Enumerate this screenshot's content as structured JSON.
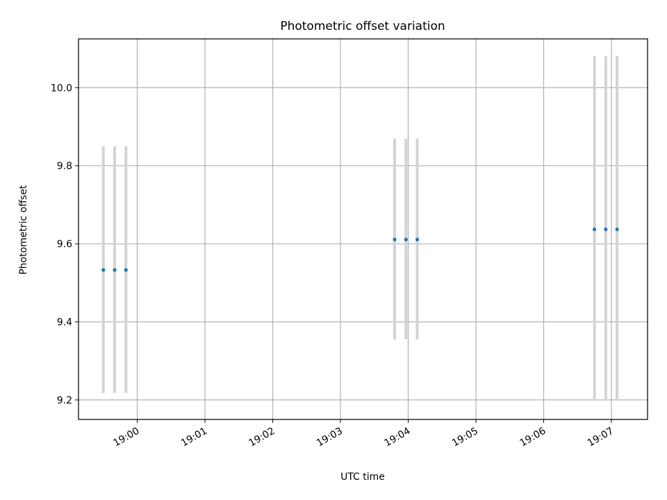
{
  "chart_data": {
    "type": "scatter",
    "title": "Photometric offset variation",
    "xlabel": "UTC time",
    "ylabel": "Photometric offset",
    "x_range": [
      "18:59:08",
      "19:07:32"
    ],
    "ylim": [
      9.15,
      10.125
    ],
    "x_ticks": [
      "19:00",
      "19:01",
      "19:02",
      "19:03",
      "19:04",
      "19:05",
      "19:06",
      "19:07"
    ],
    "y_ticks": [
      "9.2",
      "9.4",
      "9.6",
      "9.8",
      "10.0"
    ],
    "grid": true,
    "points": [
      {
        "x": "18:59:30",
        "y": 9.533,
        "ylow": 9.218,
        "yhigh": 9.85
      },
      {
        "x": "18:59:40",
        "y": 9.533,
        "ylow": 9.218,
        "yhigh": 9.85
      },
      {
        "x": "18:59:50",
        "y": 9.533,
        "ylow": 9.218,
        "yhigh": 9.85
      },
      {
        "x": "19:03:48",
        "y": 9.611,
        "ylow": 9.355,
        "yhigh": 9.869
      },
      {
        "x": "19:03:58",
        "y": 9.611,
        "ylow": 9.355,
        "yhigh": 9.869
      },
      {
        "x": "19:04:08",
        "y": 9.611,
        "ylow": 9.355,
        "yhigh": 9.869
      },
      {
        "x": "19:06:45",
        "y": 9.637,
        "ylow": 9.198,
        "yhigh": 10.081
      },
      {
        "x": "19:06:55",
        "y": 9.637,
        "ylow": 9.198,
        "yhigh": 10.081
      },
      {
        "x": "19:07:05",
        "y": 9.637,
        "ylow": 9.198,
        "yhigh": 10.081
      }
    ],
    "colors": {
      "marker": "#1f77b4",
      "errorbar": "#d3d3d3",
      "grid": "#b0b0b0",
      "frame": "#000000"
    }
  }
}
